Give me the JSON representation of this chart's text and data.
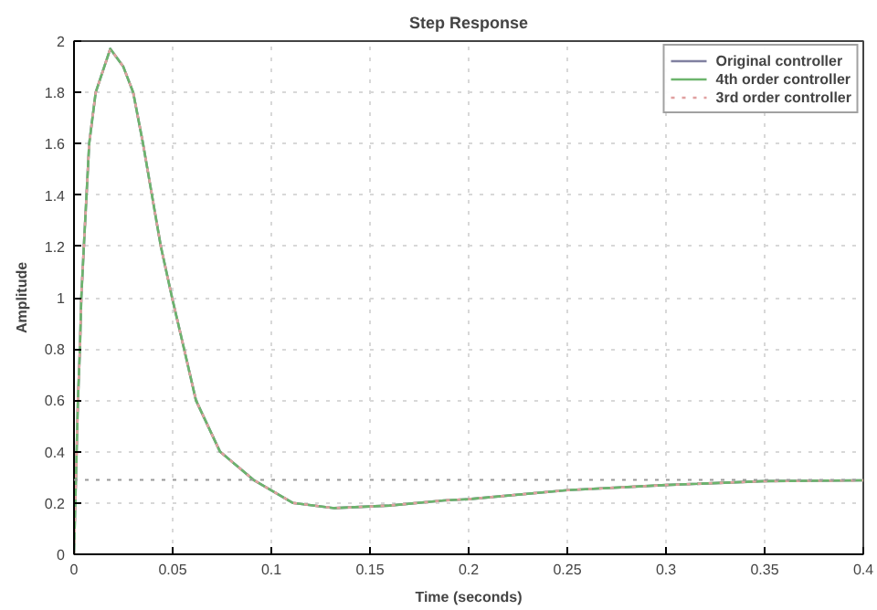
{
  "chart_data": {
    "type": "line",
    "title": "Step Response",
    "xlabel": "Time (seconds)",
    "ylabel": "Amplitude",
    "x": [
      0,
      0.001,
      0.002,
      0.003,
      0.0037,
      0.005,
      0.0077,
      0.011,
      0.0184,
      0.025,
      0.03,
      0.035,
      0.0395,
      0.044,
      0.0497,
      0.0558,
      0.0618,
      0.074,
      0.091,
      0.111,
      0.132,
      0.16,
      0.1876,
      0.2,
      0.25,
      0.3,
      0.35,
      0.4
    ],
    "series": [
      {
        "name": "Original controller",
        "color": "#8080a0",
        "line_style": "solid",
        "values": [
          0,
          0.3,
          0.6,
          0.8,
          1.0,
          1.2,
          1.6,
          1.8,
          1.97,
          1.9,
          1.8,
          1.6,
          1.4,
          1.2,
          1.0,
          0.8,
          0.6,
          0.4,
          0.29,
          0.2,
          0.18,
          0.19,
          0.21,
          0.215,
          0.25,
          0.27,
          0.285,
          0.288
        ]
      },
      {
        "name": "4th order controller",
        "color": "#6cb46c",
        "line_style": "solid",
        "values": [
          0,
          0.3,
          0.6,
          0.8,
          1.0,
          1.2,
          1.6,
          1.8,
          1.97,
          1.9,
          1.8,
          1.6,
          1.4,
          1.2,
          1.0,
          0.8,
          0.6,
          0.4,
          0.29,
          0.2,
          0.18,
          0.19,
          0.21,
          0.215,
          0.25,
          0.27,
          0.285,
          0.288
        ]
      },
      {
        "name": "3rd order controller",
        "color": "#e0a0a0",
        "line_style": "dotted",
        "values": [
          0,
          0.3,
          0.6,
          0.8,
          1.0,
          1.2,
          1.6,
          1.8,
          1.97,
          1.9,
          1.8,
          1.6,
          1.4,
          1.2,
          1.0,
          0.8,
          0.6,
          0.4,
          0.29,
          0.2,
          0.18,
          0.19,
          0.21,
          0.215,
          0.25,
          0.27,
          0.285,
          0.288
        ]
      }
    ],
    "xlim": [
      0,
      0.4
    ],
    "xticks": [
      0,
      0.05,
      0.1,
      0.15,
      0.2,
      0.25,
      0.3,
      0.35,
      0.4
    ],
    "ylim": [
      0,
      2
    ],
    "yticks": [
      0,
      0.2,
      0.4,
      0.6,
      0.8,
      1,
      1.2,
      1.4,
      1.6,
      1.8,
      2
    ],
    "ref_lines": [
      {
        "axis": "y",
        "value": 0.29,
        "color": "#999999",
        "line_style": "dotted"
      }
    ],
    "grid": true,
    "legend": "top right"
  }
}
